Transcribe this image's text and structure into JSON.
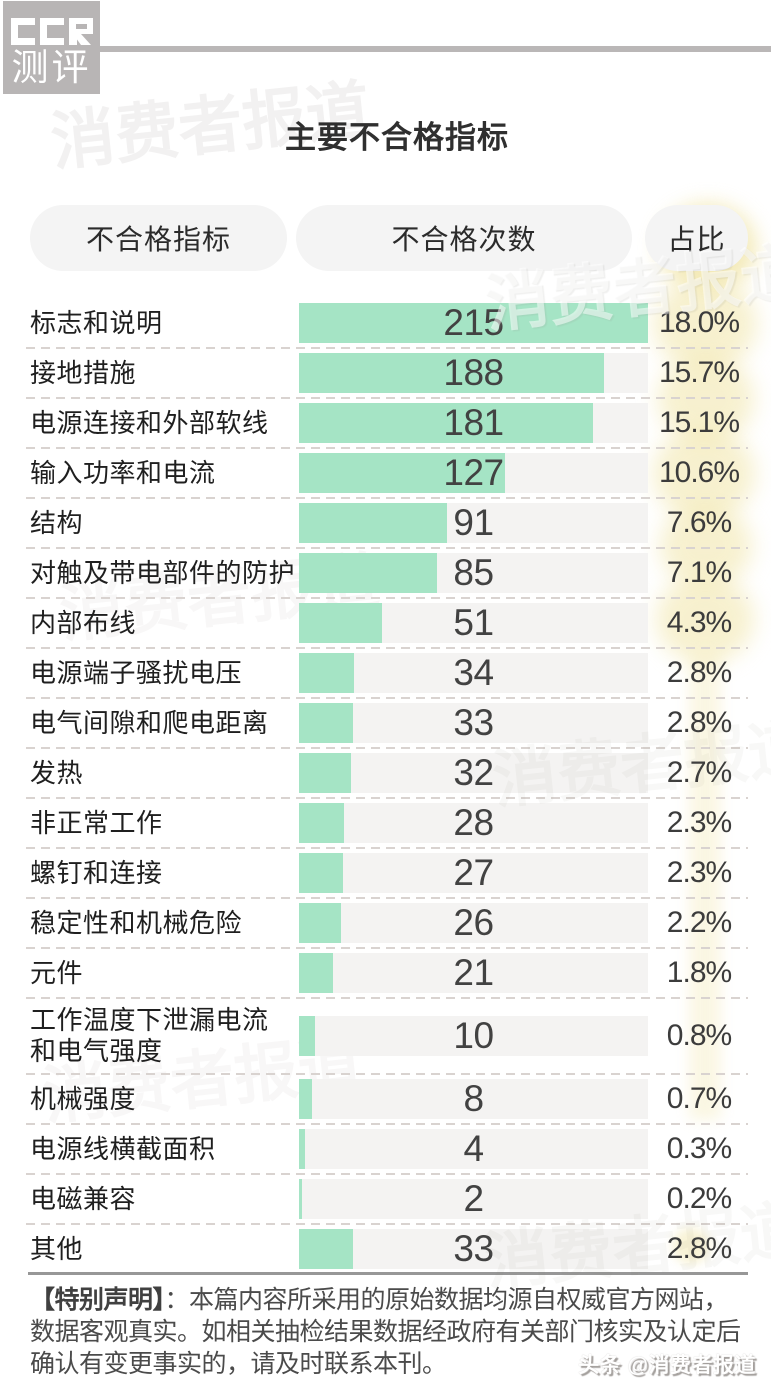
{
  "logo": {
    "brand": "CCR",
    "brand_cn": "测评",
    "box_color": "#b8b5b5"
  },
  "title": "主要不合格指标",
  "table": {
    "headers": [
      "不合格指标",
      "不合格次数",
      "占比"
    ]
  },
  "chart_data": {
    "type": "bar",
    "title": "主要不合格指标",
    "orientation": "horizontal",
    "columns": [
      "不合格指标",
      "不合格次数",
      "占比"
    ],
    "categories": [
      "标志和说明",
      "接地措施",
      "电源连接和外部软线",
      "输入功率和电流",
      "结构",
      "对触及带电部件的防护",
      "内部布线",
      "电源端子骚扰电压",
      "电气间隙和爬电距离",
      "发热",
      "非正常工作",
      "螺钉和连接",
      "稳定性和机械危险",
      "元件",
      "工作温度下泄漏电流\n和电气强度",
      "机械强度",
      "电源线横截面积",
      "电磁兼容",
      "其他"
    ],
    "values": [
      215,
      188,
      181,
      127,
      91,
      85,
      51,
      34,
      33,
      32,
      28,
      27,
      26,
      21,
      10,
      8,
      4,
      2,
      33
    ],
    "percents": [
      "18.0%",
      "15.7%",
      "15.1%",
      "10.6%",
      "7.6%",
      "7.1%",
      "4.3%",
      "2.8%",
      "2.8%",
      "2.7%",
      "2.3%",
      "2.3%",
      "2.2%",
      "1.8%",
      "0.8%",
      "0.7%",
      "0.3%",
      "0.2%",
      "2.8%"
    ],
    "xlim": [
      0,
      215
    ],
    "bar_color": "#a5e4c5",
    "track_color": "#f4f3f2",
    "highlight_color": "#f0e4a4"
  },
  "footer": {
    "bold_prefix": "【特别声明】",
    "lines": [
      "：本篇内容所采用的原始数据均源自权威官方网站，",
      "数据客观真实。如相关抽检结果数据经政府有关部门核实及认定后",
      "确认有变更事实的，请及时联系本刊。"
    ]
  },
  "watermark": {
    "text": "消费者报道",
    "stamp": "头条 @消费者报道"
  }
}
